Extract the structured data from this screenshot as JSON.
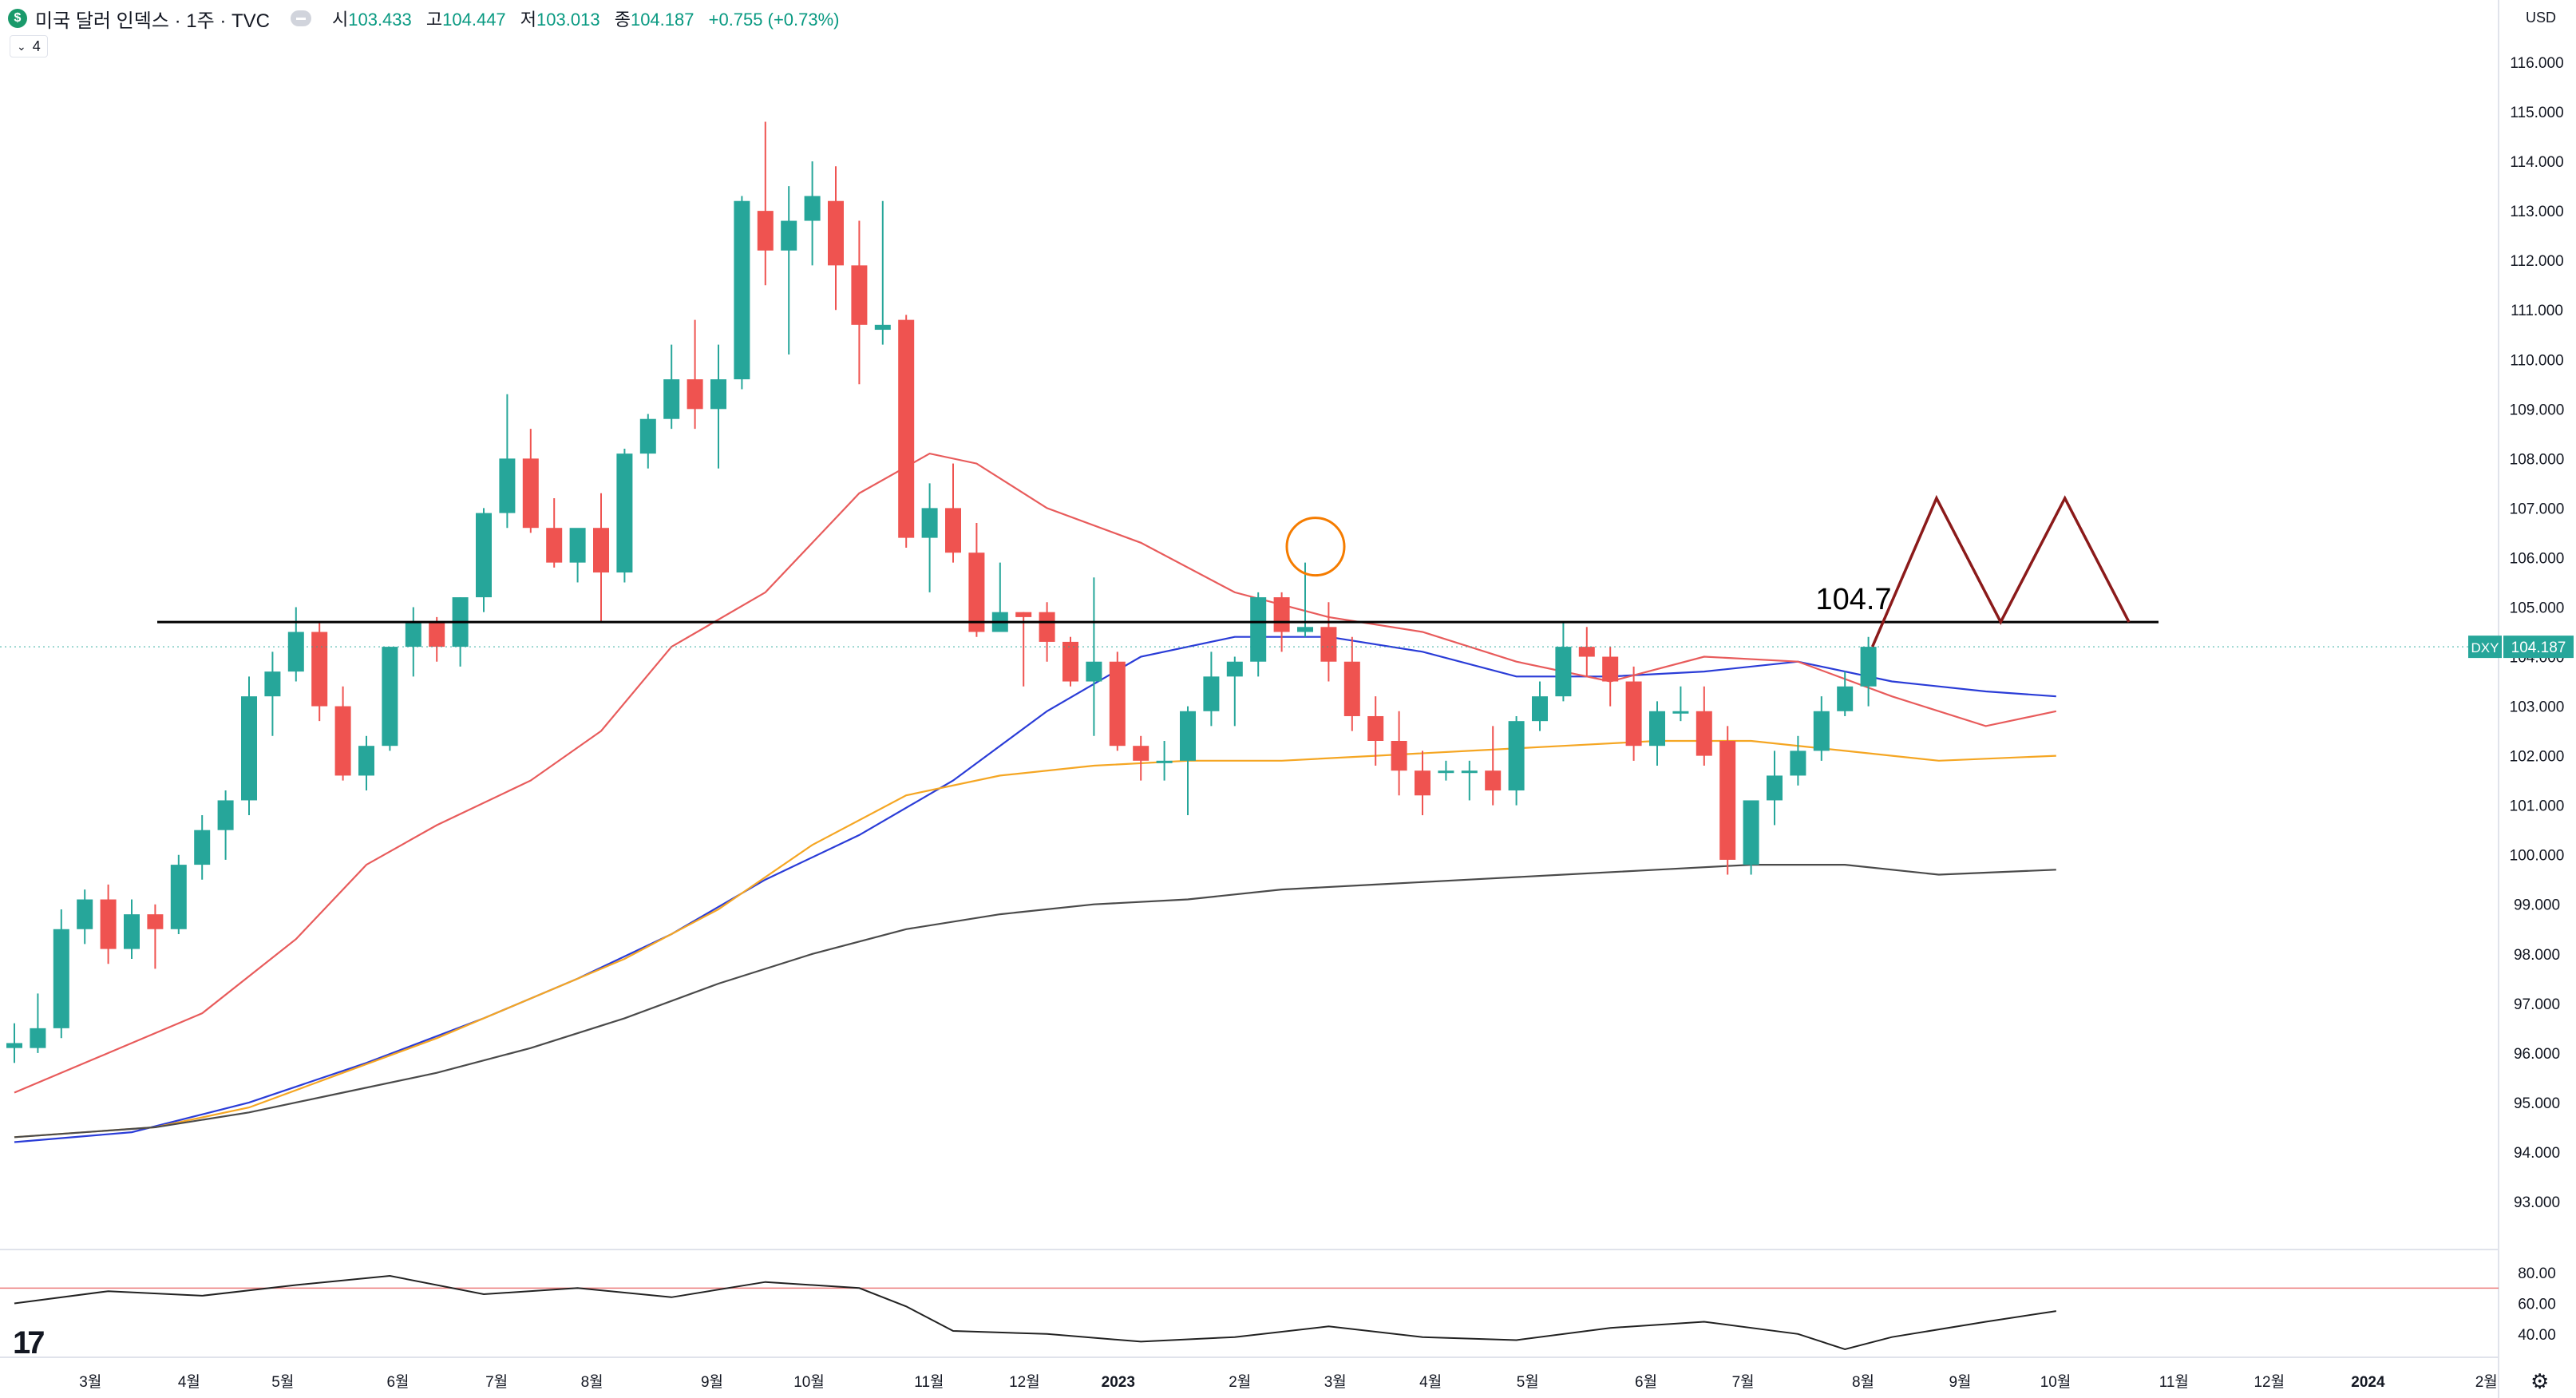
{
  "header": {
    "symbol_badge": "$",
    "title": "미국 달러 인덱스 · 1주 · TVC",
    "open_label": "시",
    "open": "103.433",
    "high_label": "고",
    "high": "104.447",
    "low_label": "저",
    "low": "103.013",
    "close_label": "종",
    "close": "104.187",
    "change": "+0.755 (+0.73%)",
    "indicator_count": "4"
  },
  "currency": "USD",
  "gear_icon": "⚙",
  "logo_text": "17",
  "chart_data": {
    "type": "candlestick",
    "ylim": [
      92,
      116.5
    ],
    "y_ticks": [
      "116.000",
      "115.000",
      "114.000",
      "113.000",
      "112.000",
      "111.000",
      "110.000",
      "109.000",
      "108.000",
      "107.000",
      "106.000",
      "105.000",
      "104.000",
      "103.000",
      "102.000",
      "101.000",
      "100.000",
      "99.000",
      "98.000",
      "97.000",
      "96.000",
      "95.000",
      "94.000",
      "93.000"
    ],
    "x_ticks": [
      {
        "label": "3월",
        "x": 55
      },
      {
        "label": "4월",
        "x": 115
      },
      {
        "label": "5월",
        "x": 172
      },
      {
        "label": "6월",
        "x": 242
      },
      {
        "label": "7월",
        "x": 302
      },
      {
        "label": "8월",
        "x": 360
      },
      {
        "label": "9월",
        "x": 433
      },
      {
        "label": "10월",
        "x": 492
      },
      {
        "label": "11월",
        "x": 565
      },
      {
        "label": "12월",
        "x": 623
      },
      {
        "label": "2023",
        "x": 680
      },
      {
        "label": "2월",
        "x": 754
      },
      {
        "label": "3월",
        "x": 812
      },
      {
        "label": "4월",
        "x": 870
      },
      {
        "label": "5월",
        "x": 929
      },
      {
        "label": "6월",
        "x": 1001
      },
      {
        "label": "7월",
        "x": 1060
      },
      {
        "label": "8월",
        "x": 1133
      },
      {
        "label": "9월",
        "x": 1192
      },
      {
        "label": "10월",
        "x": 1250
      },
      {
        "label": "11월",
        "x": 1322
      },
      {
        "label": "12월",
        "x": 1380
      },
      {
        "label": "2024",
        "x": 1440
      },
      {
        "label": "2월",
        "x": 1512
      }
    ],
    "candles": [
      {
        "o": 96.1,
        "h": 96.6,
        "l": 95.8,
        "c": 96.2
      },
      {
        "o": 96.1,
        "h": 97.2,
        "l": 96.0,
        "c": 96.5
      },
      {
        "o": 96.5,
        "h": 98.9,
        "l": 96.3,
        "c": 98.5
      },
      {
        "o": 98.5,
        "h": 99.3,
        "l": 98.2,
        "c": 99.1
      },
      {
        "o": 99.1,
        "h": 99.4,
        "l": 97.8,
        "c": 98.1
      },
      {
        "o": 98.1,
        "h": 99.1,
        "l": 97.9,
        "c": 98.8
      },
      {
        "o": 98.8,
        "h": 99.0,
        "l": 97.7,
        "c": 98.5
      },
      {
        "o": 98.5,
        "h": 100.0,
        "l": 98.4,
        "c": 99.8
      },
      {
        "o": 99.8,
        "h": 100.8,
        "l": 99.5,
        "c": 100.5
      },
      {
        "o": 100.5,
        "h": 101.3,
        "l": 99.9,
        "c": 101.1
      },
      {
        "o": 101.1,
        "h": 103.6,
        "l": 100.8,
        "c": 103.2
      },
      {
        "o": 103.2,
        "h": 104.1,
        "l": 102.4,
        "c": 103.7
      },
      {
        "o": 103.7,
        "h": 105.0,
        "l": 103.5,
        "c": 104.5
      },
      {
        "o": 104.5,
        "h": 104.7,
        "l": 102.7,
        "c": 103.0
      },
      {
        "o": 103.0,
        "h": 103.4,
        "l": 101.5,
        "c": 101.6
      },
      {
        "o": 101.6,
        "h": 102.4,
        "l": 101.3,
        "c": 102.2
      },
      {
        "o": 102.2,
        "h": 104.2,
        "l": 102.1,
        "c": 104.2
      },
      {
        "o": 104.2,
        "h": 105.0,
        "l": 103.6,
        "c": 104.7
      },
      {
        "o": 104.7,
        "h": 104.8,
        "l": 103.9,
        "c": 104.2
      },
      {
        "o": 104.2,
        "h": 105.2,
        "l": 103.8,
        "c": 105.2
      },
      {
        "o": 105.2,
        "h": 107.0,
        "l": 104.9,
        "c": 106.9
      },
      {
        "o": 106.9,
        "h": 109.3,
        "l": 106.6,
        "c": 108.0
      },
      {
        "o": 108.0,
        "h": 108.6,
        "l": 106.5,
        "c": 106.6
      },
      {
        "o": 106.6,
        "h": 107.2,
        "l": 105.8,
        "c": 105.9
      },
      {
        "o": 105.9,
        "h": 106.5,
        "l": 105.5,
        "c": 106.6
      },
      {
        "o": 106.6,
        "h": 107.3,
        "l": 104.7,
        "c": 105.7
      },
      {
        "o": 105.7,
        "h": 108.2,
        "l": 105.5,
        "c": 108.1
      },
      {
        "o": 108.1,
        "h": 108.9,
        "l": 107.8,
        "c": 108.8
      },
      {
        "o": 108.8,
        "h": 110.3,
        "l": 108.6,
        "c": 109.6
      },
      {
        "o": 109.6,
        "h": 110.8,
        "l": 108.6,
        "c": 109.0
      },
      {
        "o": 109.0,
        "h": 110.3,
        "l": 107.8,
        "c": 109.6
      },
      {
        "o": 109.6,
        "h": 113.3,
        "l": 109.4,
        "c": 113.2
      },
      {
        "o": 113.0,
        "h": 114.8,
        "l": 111.5,
        "c": 112.2
      },
      {
        "o": 112.2,
        "h": 113.5,
        "l": 110.1,
        "c": 112.8
      },
      {
        "o": 112.8,
        "h": 114.0,
        "l": 111.9,
        "c": 113.3
      },
      {
        "o": 113.2,
        "h": 113.9,
        "l": 111.0,
        "c": 111.9
      },
      {
        "o": 111.9,
        "h": 112.8,
        "l": 109.5,
        "c": 110.7
      },
      {
        "o": 110.6,
        "h": 113.2,
        "l": 110.3,
        "c": 110.7
      },
      {
        "o": 110.8,
        "h": 110.9,
        "l": 106.2,
        "c": 106.4
      },
      {
        "o": 106.4,
        "h": 107.5,
        "l": 105.3,
        "c": 107.0
      },
      {
        "o": 107.0,
        "h": 107.9,
        "l": 105.9,
        "c": 106.1
      },
      {
        "o": 106.1,
        "h": 106.7,
        "l": 104.4,
        "c": 104.5
      },
      {
        "o": 104.5,
        "h": 105.9,
        "l": 104.5,
        "c": 104.9
      },
      {
        "o": 104.9,
        "h": 104.9,
        "l": 103.4,
        "c": 104.8
      },
      {
        "o": 104.9,
        "h": 105.1,
        "l": 103.9,
        "c": 104.3
      },
      {
        "o": 104.3,
        "h": 104.4,
        "l": 103.4,
        "c": 103.5
      },
      {
        "o": 103.5,
        "h": 105.6,
        "l": 102.4,
        "c": 103.9
      },
      {
        "o": 103.9,
        "h": 104.1,
        "l": 102.1,
        "c": 102.2
      },
      {
        "o": 102.2,
        "h": 102.4,
        "l": 101.5,
        "c": 101.9
      },
      {
        "o": 101.9,
        "h": 102.3,
        "l": 101.5,
        "c": 101.9
      },
      {
        "o": 101.9,
        "h": 103.0,
        "l": 100.8,
        "c": 102.9
      },
      {
        "o": 102.9,
        "h": 104.1,
        "l": 102.6,
        "c": 103.6
      },
      {
        "o": 103.6,
        "h": 104.0,
        "l": 102.6,
        "c": 103.9
      },
      {
        "o": 103.9,
        "h": 105.3,
        "l": 103.6,
        "c": 105.2
      },
      {
        "o": 105.2,
        "h": 105.3,
        "l": 104.1,
        "c": 104.5
      },
      {
        "o": 104.5,
        "h": 105.9,
        "l": 104.4,
        "c": 104.6
      },
      {
        "o": 104.6,
        "h": 105.1,
        "l": 103.5,
        "c": 103.9
      },
      {
        "o": 103.9,
        "h": 104.4,
        "l": 102.5,
        "c": 102.8
      },
      {
        "o": 102.8,
        "h": 103.2,
        "l": 101.8,
        "c": 102.3
      },
      {
        "o": 102.3,
        "h": 102.9,
        "l": 101.2,
        "c": 101.7
      },
      {
        "o": 101.7,
        "h": 102.1,
        "l": 100.8,
        "c": 101.2
      },
      {
        "o": 101.7,
        "h": 101.9,
        "l": 101.5,
        "c": 101.7
      },
      {
        "o": 101.7,
        "h": 101.9,
        "l": 101.1,
        "c": 101.7
      },
      {
        "o": 101.7,
        "h": 102.6,
        "l": 101.0,
        "c": 101.3
      },
      {
        "o": 101.3,
        "h": 102.8,
        "l": 101.0,
        "c": 102.7
      },
      {
        "o": 102.7,
        "h": 103.5,
        "l": 102.5,
        "c": 103.2
      },
      {
        "o": 103.2,
        "h": 104.7,
        "l": 103.1,
        "c": 104.2
      },
      {
        "o": 104.2,
        "h": 104.6,
        "l": 103.6,
        "c": 104.0
      },
      {
        "o": 104.0,
        "h": 104.2,
        "l": 103.0,
        "c": 103.5
      },
      {
        "o": 103.5,
        "h": 103.8,
        "l": 101.9,
        "c": 102.2
      },
      {
        "o": 102.2,
        "h": 103.1,
        "l": 101.8,
        "c": 102.9
      },
      {
        "o": 102.9,
        "h": 103.4,
        "l": 102.7,
        "c": 102.9
      },
      {
        "o": 102.9,
        "h": 103.4,
        "l": 101.8,
        "c": 102.0
      },
      {
        "o": 102.3,
        "h": 102.6,
        "l": 99.6,
        "c": 99.9
      },
      {
        "o": 99.8,
        "h": 101.1,
        "l": 99.6,
        "c": 101.1
      },
      {
        "o": 101.1,
        "h": 102.1,
        "l": 100.6,
        "c": 101.6
      },
      {
        "o": 101.6,
        "h": 102.4,
        "l": 101.4,
        "c": 102.1
      },
      {
        "o": 102.1,
        "h": 103.2,
        "l": 101.9,
        "c": 102.9
      },
      {
        "o": 102.9,
        "h": 103.7,
        "l": 102.8,
        "c": 103.4
      },
      {
        "o": 103.4,
        "h": 104.4,
        "l": 103.0,
        "c": 104.2
      }
    ],
    "ma_lines": [
      {
        "color": "#2a3cd7",
        "values": [
          [
            0,
            94.2
          ],
          [
            5,
            94.4
          ],
          [
            10,
            95.0
          ],
          [
            15,
            95.8
          ],
          [
            20,
            96.7
          ],
          [
            24,
            97.5
          ],
          [
            28,
            98.4
          ],
          [
            32,
            99.5
          ],
          [
            36,
            100.4
          ],
          [
            40,
            101.5
          ],
          [
            44,
            102.9
          ],
          [
            48,
            104.0
          ],
          [
            52,
            104.4
          ],
          [
            56,
            104.4
          ],
          [
            60,
            104.1
          ],
          [
            64,
            103.6
          ],
          [
            68,
            103.6
          ],
          [
            72,
            103.7
          ],
          [
            76,
            103.9
          ],
          [
            80,
            103.5
          ],
          [
            84,
            103.3
          ],
          [
            87,
            103.2
          ]
        ]
      },
      {
        "color": "#e85b5b",
        "values": [
          [
            0,
            95.2
          ],
          [
            4,
            96.0
          ],
          [
            8,
            96.8
          ],
          [
            12,
            98.3
          ],
          [
            15,
            99.8
          ],
          [
            18,
            100.6
          ],
          [
            22,
            101.5
          ],
          [
            25,
            102.5
          ],
          [
            28,
            104.2
          ],
          [
            32,
            105.3
          ],
          [
            36,
            107.3
          ],
          [
            39,
            108.1
          ],
          [
            41,
            107.9
          ],
          [
            44,
            107.0
          ],
          [
            48,
            106.3
          ],
          [
            52,
            105.3
          ],
          [
            56,
            104.8
          ],
          [
            60,
            104.5
          ],
          [
            64,
            103.9
          ],
          [
            68,
            103.5
          ],
          [
            72,
            104.0
          ],
          [
            76,
            103.9
          ],
          [
            80,
            103.2
          ],
          [
            84,
            102.6
          ],
          [
            87,
            102.9
          ]
        ]
      },
      {
        "color": "#f5a623",
        "values": [
          [
            0,
            94.3
          ],
          [
            6,
            94.5
          ],
          [
            10,
            94.9
          ],
          [
            14,
            95.6
          ],
          [
            18,
            96.3
          ],
          [
            22,
            97.1
          ],
          [
            26,
            97.9
          ],
          [
            30,
            98.9
          ],
          [
            34,
            100.2
          ],
          [
            38,
            101.2
          ],
          [
            42,
            101.6
          ],
          [
            46,
            101.8
          ],
          [
            50,
            101.9
          ],
          [
            54,
            101.9
          ],
          [
            58,
            102.0
          ],
          [
            62,
            102.1
          ],
          [
            66,
            102.2
          ],
          [
            70,
            102.3
          ],
          [
            74,
            102.3
          ],
          [
            78,
            102.1
          ],
          [
            82,
            101.9
          ],
          [
            87,
            102.0
          ]
        ]
      },
      {
        "color": "#4a4a4a",
        "values": [
          [
            0,
            94.3
          ],
          [
            6,
            94.5
          ],
          [
            10,
            94.8
          ],
          [
            14,
            95.2
          ],
          [
            18,
            95.6
          ],
          [
            22,
            96.1
          ],
          [
            26,
            96.7
          ],
          [
            30,
            97.4
          ],
          [
            34,
            98.0
          ],
          [
            38,
            98.5
          ],
          [
            42,
            98.8
          ],
          [
            46,
            99.0
          ],
          [
            50,
            99.1
          ],
          [
            54,
            99.3
          ],
          [
            58,
            99.4
          ],
          [
            62,
            99.5
          ],
          [
            66,
            99.6
          ],
          [
            70,
            99.7
          ],
          [
            74,
            99.8
          ],
          [
            78,
            99.8
          ],
          [
            82,
            99.6
          ],
          [
            87,
            99.7
          ]
        ]
      }
    ],
    "horizontal_line": 104.7,
    "horizontal_line_label": "104.7",
    "current_price_label": "104.187",
    "symbol_tag": "DXY",
    "projection_zigzag": [
      [
        104.2
      ],
      [
        107.2
      ],
      [
        104.7
      ],
      [
        107.2
      ],
      [
        104.7
      ]
    ],
    "circle_mark_at_index": 55,
    "rsi": {
      "levels": [
        "80.00",
        "60.00",
        "40.00"
      ],
      "upper_band": 70,
      "values": [
        [
          0,
          60
        ],
        [
          4,
          68
        ],
        [
          8,
          65
        ],
        [
          12,
          72
        ],
        [
          16,
          78
        ],
        [
          20,
          66
        ],
        [
          24,
          70
        ],
        [
          28,
          64
        ],
        [
          32,
          74
        ],
        [
          36,
          70
        ],
        [
          38,
          58
        ],
        [
          40,
          42
        ],
        [
          44,
          40
        ],
        [
          48,
          35
        ],
        [
          52,
          38
        ],
        [
          56,
          45
        ],
        [
          60,
          38
        ],
        [
          64,
          36
        ],
        [
          68,
          44
        ],
        [
          72,
          48
        ],
        [
          76,
          40
        ],
        [
          78,
          30
        ],
        [
          80,
          38
        ],
        [
          84,
          48
        ],
        [
          87,
          55
        ]
      ]
    }
  }
}
